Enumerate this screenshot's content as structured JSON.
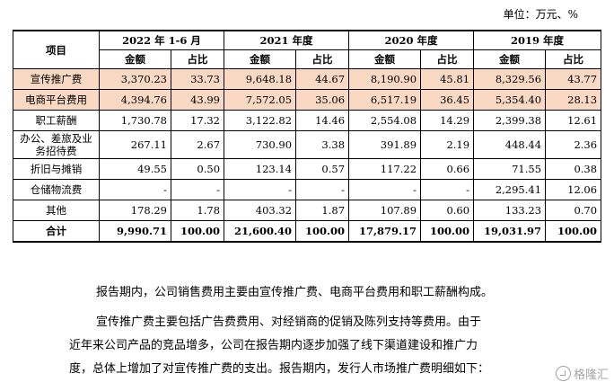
{
  "unit_note": "单位：万元、%",
  "table": {
    "header_item": "项目",
    "periods": [
      "2022 年 1-6 月",
      "2021 年度",
      "2020 年度",
      "2019 年度"
    ],
    "amount_label": "金额",
    "ratio_label": "占比",
    "rows": [
      {
        "label": "宣传推广费",
        "values": [
          "3,370.23",
          "33.73",
          "9,648.18",
          "44.67",
          "8,190.90",
          "45.81",
          "8,329.56",
          "43.77"
        ]
      },
      {
        "label": "电商平台费用",
        "values": [
          "4,394.76",
          "43.99",
          "7,572.05",
          "35.06",
          "6,517.19",
          "36.45",
          "5,354.40",
          "28.13"
        ]
      },
      {
        "label": "职工薪酬",
        "values": [
          "1,730.78",
          "17.32",
          "3,122.82",
          "14.46",
          "2,554.08",
          "14.29",
          "2,399.38",
          "12.61"
        ]
      },
      {
        "label": "办公、差旅及业务招待费",
        "values": [
          "267.11",
          "2.67",
          "730.90",
          "3.38",
          "391.89",
          "2.19",
          "448.44",
          "2.36"
        ]
      },
      {
        "label": "折旧与摊销",
        "values": [
          "49.55",
          "0.50",
          "123.14",
          "0.57",
          "117.22",
          "0.66",
          "71.55",
          "0.38"
        ]
      },
      {
        "label": "仓储物流费",
        "values": [
          "-",
          "-",
          "-",
          "-",
          "-",
          "-",
          "2,295.41",
          "12.06"
        ]
      },
      {
        "label": "其他",
        "values": [
          "178.29",
          "1.78",
          "403.32",
          "1.87",
          "107.89",
          "0.60",
          "133.23",
          "0.70"
        ]
      },
      {
        "label": "合计",
        "values": [
          "9,990.71",
          "100.00",
          "21,600.40",
          "100.00",
          "17,879.17",
          "100.00",
          "19,031.97",
          "100.00"
        ]
      }
    ]
  },
  "paragraphs": [
    "报告期内，公司销售费用主要由宣传推广费、电商平台费用和职工薪酬构成。",
    "宣传推广费主要包括广告费费用、对经销商的促销及陈列支持等费用。由于",
    "近年来公司产品的竞品增多，公司在报告期内逐步加强了线下渠道建设和推广力",
    "度，总体上增加了对宣传推广费的支出。报告期内，发行人市场推广费明细如下："
  ],
  "watermark": "格隆汇",
  "icons": {
    "watermark": "gelonghui-logo-icon"
  }
}
